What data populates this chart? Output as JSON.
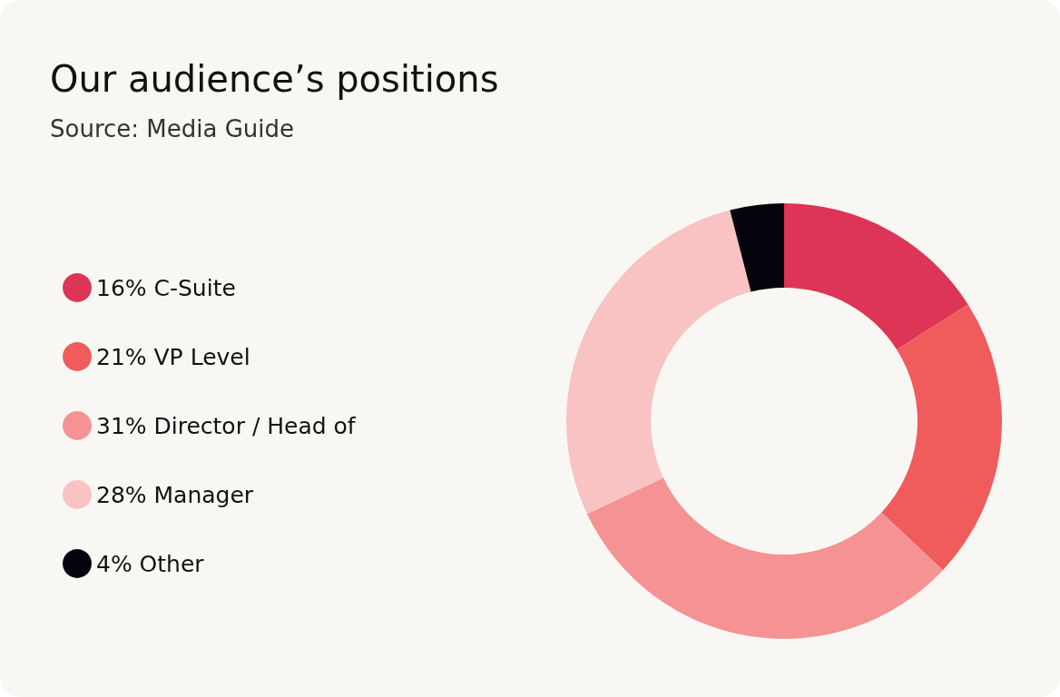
{
  "chart_data": {
    "type": "donut",
    "title": "Our audience’s positions",
    "subtitle": "Source: Media Guide",
    "categories": [
      "C-Suite",
      "VP Level",
      "Director / Head of",
      "Manager",
      "Other"
    ],
    "values": [
      16,
      21,
      31,
      28,
      4
    ],
    "value_labels": [
      "16%",
      "21%",
      "31%",
      "28%",
      "4%"
    ],
    "colors": [
      "#dc3555",
      "#f05c5c",
      "#f59293",
      "#f9c2c3",
      "#05040c"
    ],
    "legend": "left"
  }
}
